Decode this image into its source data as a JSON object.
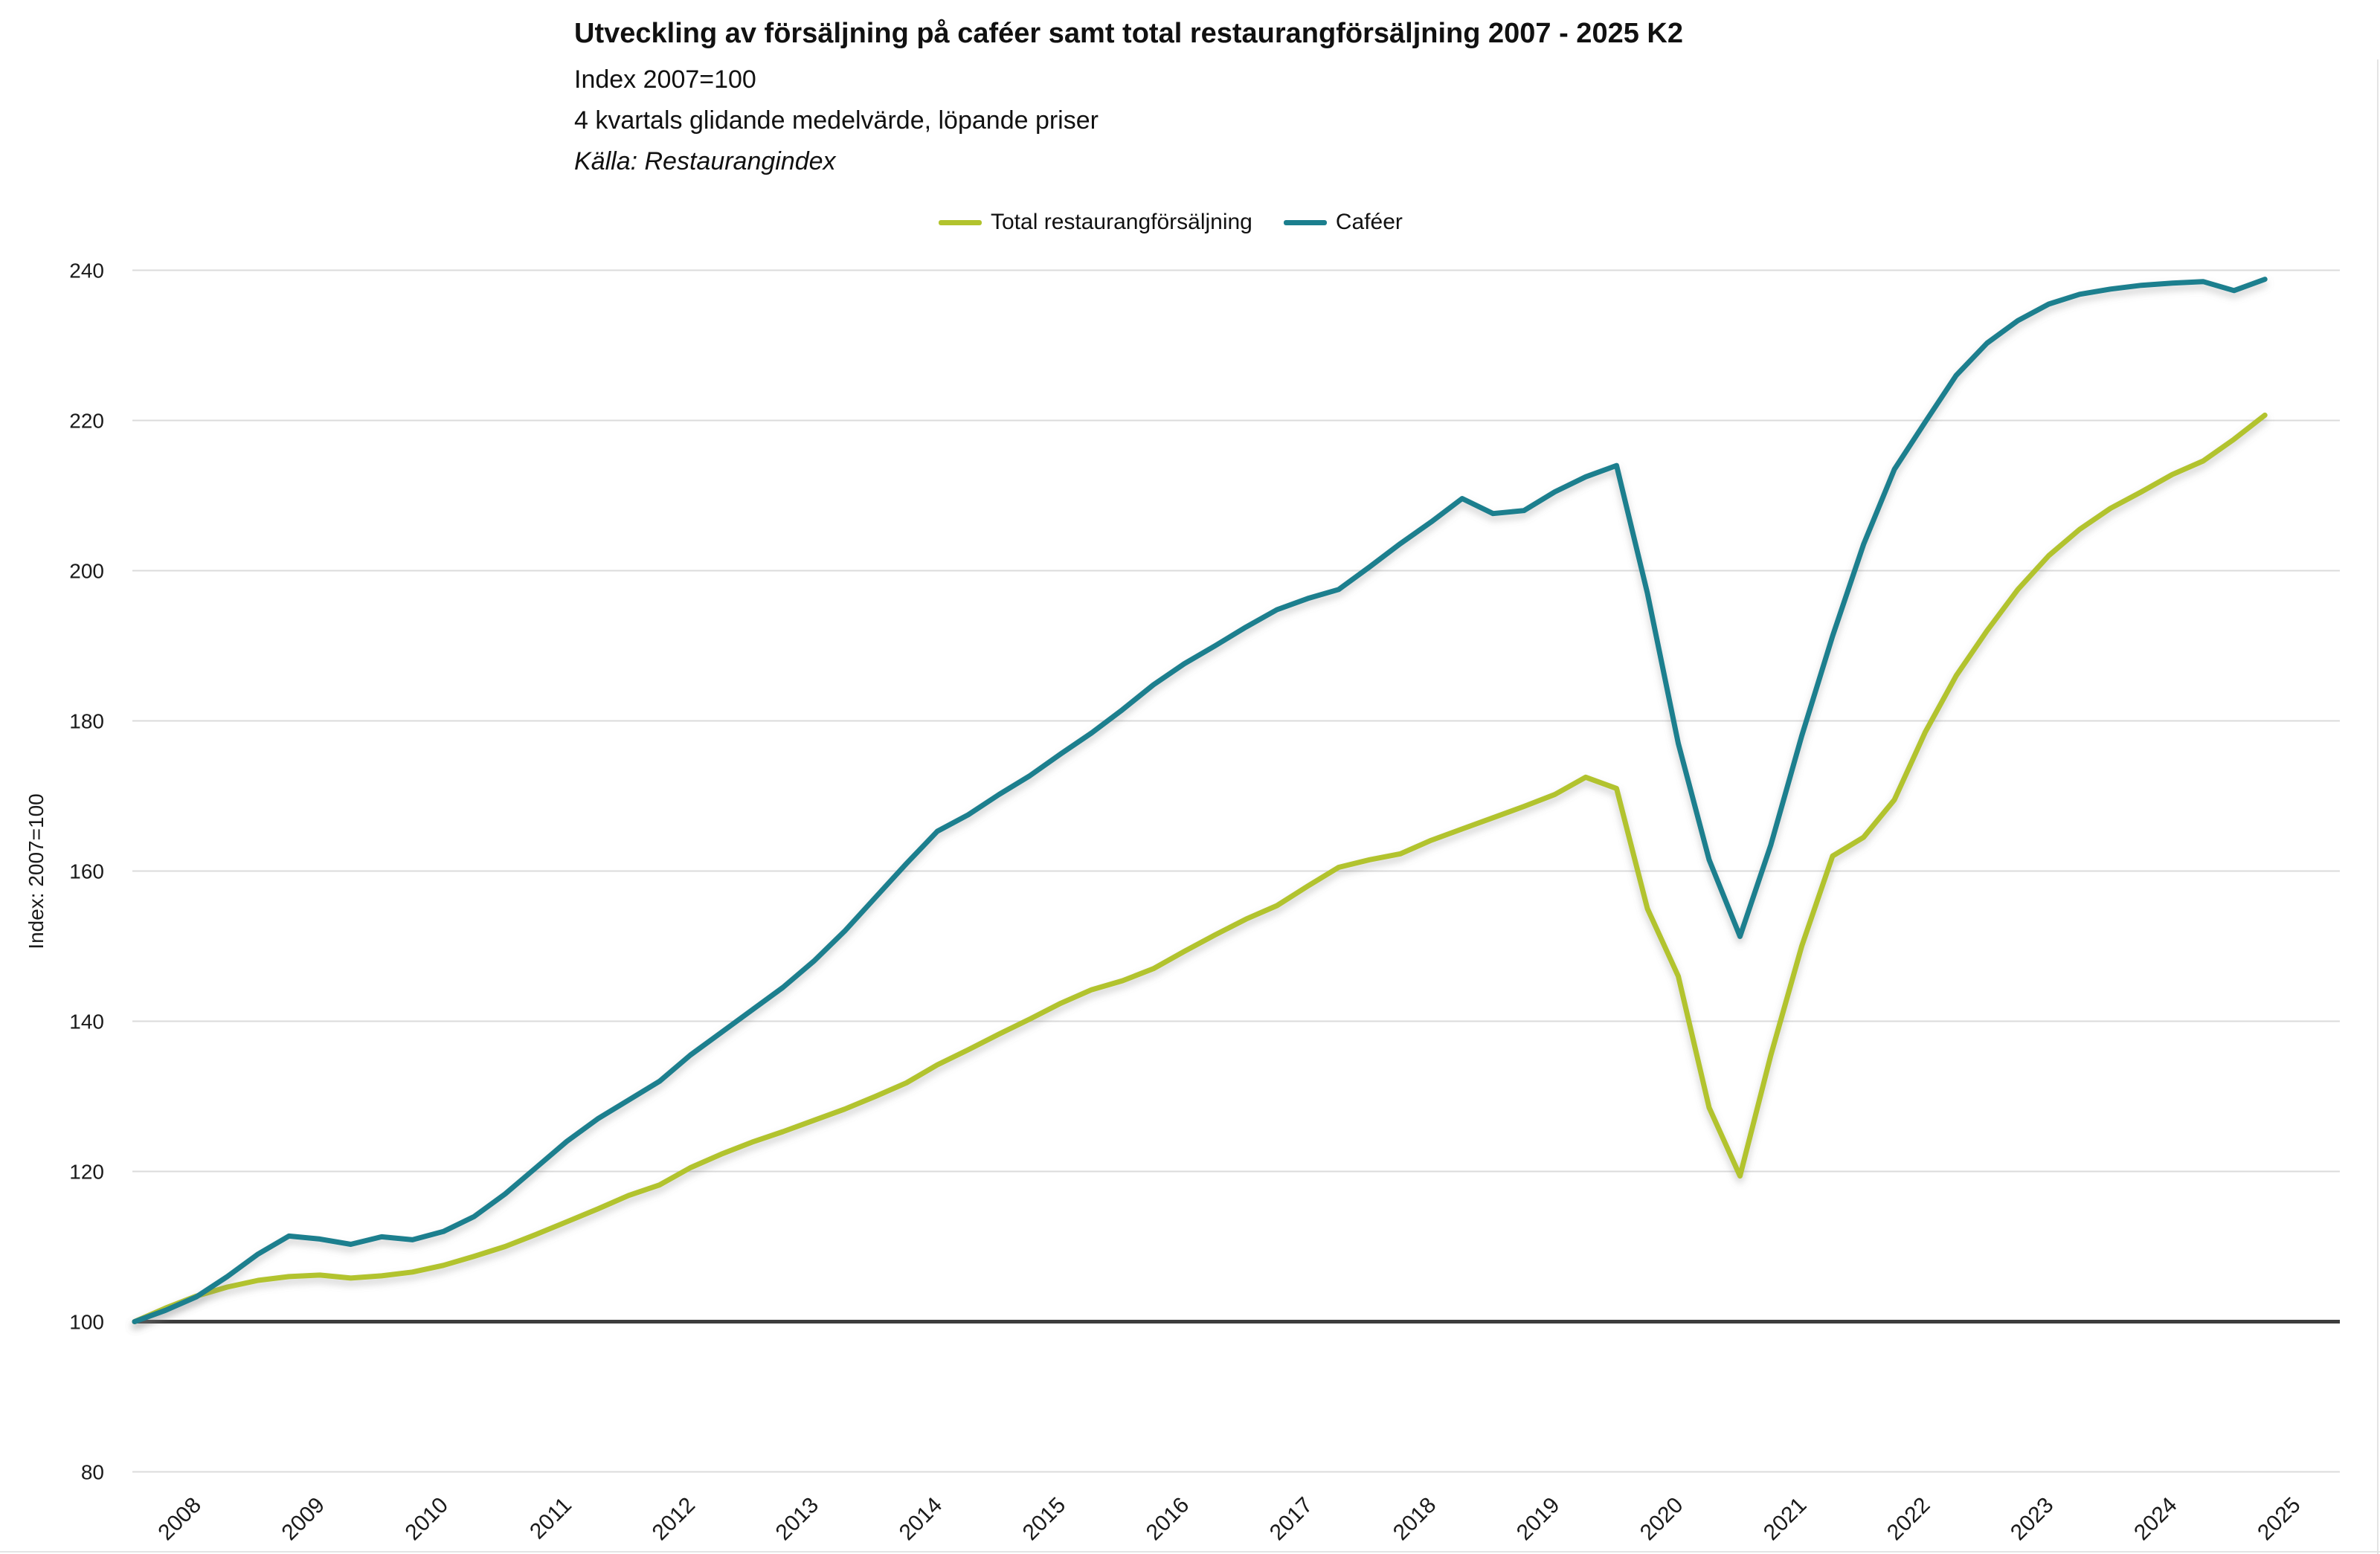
{
  "chart_data": {
    "type": "line",
    "title": "Utveckling av försäljning på caféer samt total restaurangförsäljning 2007 - 2025 K2",
    "subtitle_index": "Index 2007=100",
    "subtitle_method": "4 kvartals glidande medelvärde, löpande priser",
    "source": "Källa: Restaurangindex",
    "grid": "horizontal",
    "legend_position": "top-center",
    "colors": {
      "total": "#b2c32d",
      "cafeer": "#1b7f8e",
      "gridline": "#dbdbdb",
      "baseline": "#3d3d3d",
      "text": "#1a1a1a"
    },
    "y_axis": {
      "label": "Index: 2007=100",
      "min": 80,
      "max": 240,
      "step": 20,
      "ticks": [
        240,
        220,
        200,
        180,
        160,
        140,
        120,
        100,
        80
      ],
      "baseline_value": 100
    },
    "x_axis": {
      "tick_labels": [
        "2008",
        "2009",
        "2010",
        "2011",
        "2012",
        "2013",
        "2014",
        "2015",
        "2016",
        "2017",
        "2018",
        "2019",
        "2020",
        "2021",
        "2022",
        "2023",
        "2024",
        "2025"
      ]
    },
    "x_quarters": [
      "2008 K1",
      "2008 K2",
      "2008 K3",
      "2008 K4",
      "2009 K1",
      "2009 K2",
      "2009 K3",
      "2009 K4",
      "2010 K1",
      "2010 K2",
      "2010 K3",
      "2010 K4",
      "2011 K1",
      "2011 K2",
      "2011 K3",
      "2011 K4",
      "2012 K1",
      "2012 K2",
      "2012 K3",
      "2012 K4",
      "2013 K1",
      "2013 K2",
      "2013 K3",
      "2013 K4",
      "2014 K1",
      "2014 K2",
      "2014 K3",
      "2014 K4",
      "2015 K1",
      "2015 K2",
      "2015 K3",
      "2015 K4",
      "2016 K1",
      "2016 K2",
      "2016 K3",
      "2016 K4",
      "2017 K1",
      "2017 K2",
      "2017 K3",
      "2017 K4",
      "2018 K1",
      "2018 K2",
      "2018 K3",
      "2018 K4",
      "2019 K1",
      "2019 K2",
      "2019 K3",
      "2019 K4",
      "2020 K1",
      "2020 K2",
      "2020 K3",
      "2020 K4",
      "2021 K1",
      "2021 K2",
      "2021 K3",
      "2021 K4",
      "2022 K1",
      "2022 K2",
      "2022 K3",
      "2022 K4",
      "2023 K1",
      "2023 K2",
      "2023 K3",
      "2023 K4",
      "2024 K1",
      "2024 K2",
      "2024 K3",
      "2024 K4",
      "2025 K1",
      "2025 K2"
    ],
    "series": [
      {
        "name": "Total restaurangförsäljning",
        "color": "#b2c32d",
        "values": [
          100.0,
          101.8,
          103.4,
          104.6,
          105.5,
          106.0,
          106.2,
          105.8,
          106.1,
          106.6,
          107.5,
          108.7,
          110.0,
          111.6,
          113.3,
          115.0,
          116.8,
          118.2,
          120.5,
          122.3,
          123.9,
          125.3,
          126.8,
          128.3,
          130.0,
          131.8,
          134.2,
          136.2,
          138.3,
          140.3,
          142.4,
          144.2,
          145.4,
          147.0,
          149.3,
          151.5,
          153.6,
          155.4,
          158.0,
          160.5,
          161.5,
          162.3,
          164.1,
          165.6,
          167.1,
          168.6,
          170.2,
          172.5,
          171.0,
          155.0,
          146.0,
          128.5,
          119.4,
          135.5,
          150.0,
          162.0,
          164.5,
          169.5,
          178.5,
          186.0,
          192.0,
          197.5,
          202.0,
          205.5,
          208.3,
          210.5,
          212.8,
          214.6,
          217.5,
          220.7
        ]
      },
      {
        "name": "Caféer",
        "color": "#1b7f8e",
        "values": [
          100.0,
          101.5,
          103.3,
          106.0,
          109.0,
          111.4,
          111.0,
          110.3,
          111.3,
          110.9,
          112.0,
          114.0,
          117.0,
          120.5,
          124.0,
          127.0,
          129.5,
          132.0,
          135.5,
          138.5,
          141.5,
          144.5,
          148.0,
          152.0,
          156.5,
          161.0,
          165.3,
          167.5,
          170.2,
          172.7,
          175.6,
          178.4,
          181.5,
          184.8,
          187.6,
          190.0,
          192.5,
          194.8,
          196.3,
          197.5,
          200.5,
          203.6,
          206.5,
          209.6,
          207.6,
          208.0,
          210.5,
          212.5,
          214.0,
          197.0,
          177.0,
          161.5,
          151.3,
          163.5,
          178.0,
          191.3,
          203.5,
          213.5,
          219.8,
          226.0,
          230.3,
          233.3,
          235.5,
          236.8,
          237.5,
          238.0,
          238.3,
          238.5,
          237.3,
          238.8
        ]
      }
    ]
  }
}
